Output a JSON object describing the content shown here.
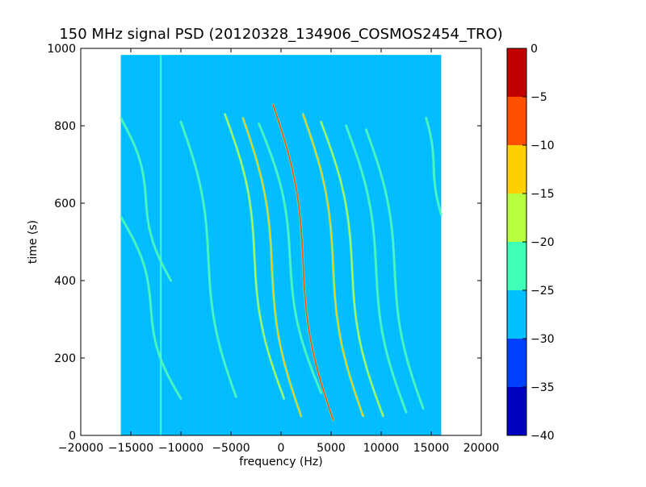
{
  "chart_data": {
    "type": "heatmap",
    "title": "150 MHz signal PSD (20120328_134906_COSMOS2454_TRO)",
    "xlabel": "frequency (Hz)",
    "ylabel": "time (s)",
    "xlim": [
      -20000,
      20000
    ],
    "ylim": [
      0,
      1000
    ],
    "x_ticks": [
      -20000,
      -15000,
      -10000,
      -5000,
      0,
      5000,
      10000,
      15000,
      20000
    ],
    "x_tick_labels": [
      "−20000",
      "−15000",
      "−10000",
      "−5000",
      "0",
      "5000",
      "10000",
      "15000",
      "20000"
    ],
    "y_ticks": [
      0,
      200,
      400,
      600,
      800,
      1000
    ],
    "y_tick_labels": [
      "0",
      "200",
      "400",
      "600",
      "800",
      "1000"
    ],
    "data_extent": {
      "x": [
        -16000,
        16000
      ],
      "y": [
        0,
        983
      ]
    },
    "background_level": -27,
    "colorbar": {
      "range": [
        -40,
        0
      ],
      "ticks": [
        0,
        -5,
        -10,
        -15,
        -20,
        -25,
        -30,
        -35,
        -40
      ],
      "tick_labels": [
        "0",
        "−5",
        "−10",
        "−15",
        "−20",
        "−25",
        "−30",
        "−35",
        "−40"
      ],
      "bins": [
        {
          "from": -40,
          "to": -35,
          "color": "#0000c0"
        },
        {
          "from": -35,
          "to": -30,
          "color": "#0040ff"
        },
        {
          "from": -30,
          "to": -25,
          "color": "#00c0ff"
        },
        {
          "from": -25,
          "to": -20,
          "color": "#40ffb8"
        },
        {
          "from": -20,
          "to": -15,
          "color": "#b8ff40"
        },
        {
          "from": -15,
          "to": -10,
          "color": "#ffd000"
        },
        {
          "from": -10,
          "to": -5,
          "color": "#ff5000"
        },
        {
          "from": -5,
          "to": 0,
          "color": "#c00000"
        }
      ]
    },
    "static_line": {
      "frequency": -12000,
      "level": -24
    },
    "signal_traces": [
      {
        "start_frequency": -16000,
        "end_frequency": -11000,
        "start_time": 820,
        "end_time": 400,
        "level": -22
      },
      {
        "start_frequency": -16000,
        "end_frequency": -10000,
        "start_time": 565,
        "end_time": 95,
        "level": -22
      },
      {
        "start_frequency": -10000,
        "end_frequency": -4500,
        "start_time": 810,
        "end_time": 100,
        "level": -24
      },
      {
        "start_frequency": -5600,
        "end_frequency": 300,
        "start_time": 830,
        "end_time": 95,
        "level": -17
      },
      {
        "start_frequency": -3800,
        "end_frequency": 2000,
        "start_time": 820,
        "end_time": 50,
        "level": -15
      },
      {
        "start_frequency": -2200,
        "end_frequency": 4000,
        "start_time": 805,
        "end_time": 110,
        "level": -23
      },
      {
        "start_frequency": -800,
        "end_frequency": 5200,
        "start_time": 855,
        "end_time": 40,
        "level": -7
      },
      {
        "start_frequency": 2200,
        "end_frequency": 8200,
        "start_time": 830,
        "end_time": 50,
        "level": -15
      },
      {
        "start_frequency": 4000,
        "end_frequency": 10200,
        "start_time": 810,
        "end_time": 50,
        "level": -17
      },
      {
        "start_frequency": 6500,
        "end_frequency": 12500,
        "start_time": 800,
        "end_time": 60,
        "level": -23
      },
      {
        "start_frequency": 8500,
        "end_frequency": 14200,
        "start_time": 790,
        "end_time": 70,
        "level": -23
      },
      {
        "start_frequency": 14500,
        "end_frequency": 16000,
        "start_time": 820,
        "end_time": 570,
        "level": -22
      }
    ]
  }
}
